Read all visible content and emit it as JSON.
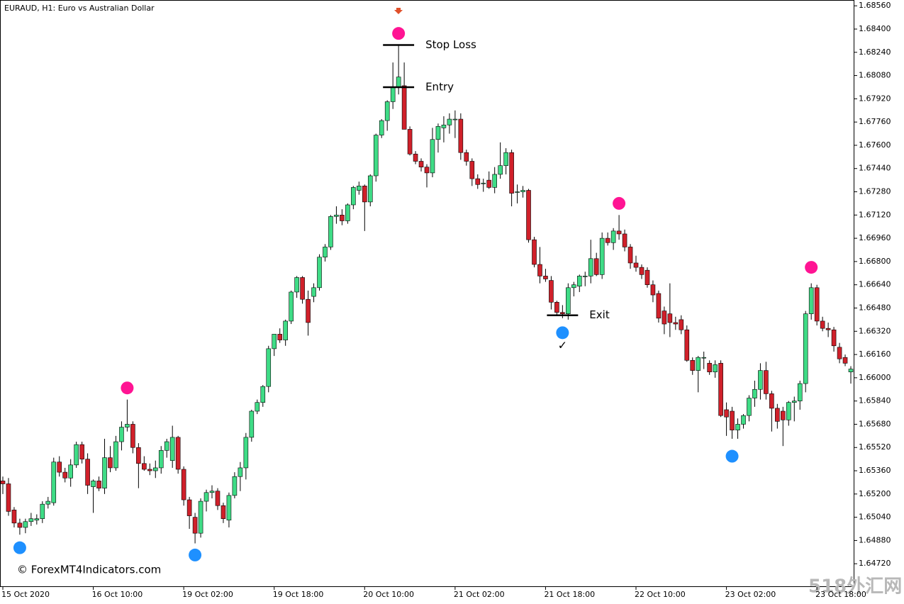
{
  "chart_data": {
    "type": "candlestick",
    "title": "EURAUD, H1:  Euro vs Australian Dollar",
    "categories": [
      "15 Oct 2020",
      null,
      null,
      null,
      null,
      null,
      null,
      null,
      null,
      null,
      null,
      null,
      null,
      null,
      null,
      null,
      "16 Oct 10:00",
      null,
      null,
      null,
      null,
      null,
      null,
      null,
      null,
      null,
      null,
      null,
      null,
      null,
      null,
      null,
      "19 Oct 02:00",
      null,
      null,
      null,
      null,
      null,
      null,
      null,
      null,
      null,
      null,
      null,
      null,
      null,
      null,
      null,
      "19 Oct 18:00",
      null,
      null,
      null,
      null,
      null,
      null,
      null,
      null,
      null,
      null,
      null,
      null,
      null,
      null,
      null,
      "20 Oct 10:00",
      null,
      null,
      null,
      null,
      null,
      null,
      null,
      null,
      null,
      null,
      null,
      null,
      null,
      null,
      null,
      "21 Oct 02:00",
      null,
      null,
      null,
      null,
      null,
      null,
      null,
      null,
      null,
      null,
      null,
      null,
      null,
      null,
      null,
      "21 Oct 18:00",
      null,
      null,
      null,
      null,
      null,
      null,
      null,
      null,
      null,
      null,
      null,
      null,
      null,
      null,
      null,
      "22 Oct 10:00",
      null,
      null,
      null,
      null,
      null,
      null,
      null,
      null,
      null,
      null,
      null,
      null,
      null,
      null,
      null,
      "23 Oct 02:00",
      null,
      null,
      null,
      null,
      null,
      null,
      null,
      null,
      null,
      null,
      null,
      null,
      null,
      null,
      null,
      "23 Oct 18:00",
      null,
      null,
      null,
      null,
      null,
      null
    ],
    "open": [
      1.6529,
      1.6527,
      1.6509,
      1.65,
      1.6497,
      1.6501,
      1.6502,
      1.6503,
      1.6513,
      1.6514,
      1.6542,
      1.6535,
      1.6531,
      1.654,
      1.6554,
      1.6544,
      1.6525,
      1.6529,
      1.6524,
      1.6545,
      1.6538,
      1.6556,
      1.6566,
      1.6568,
      1.6552,
      1.6541,
      1.6537,
      1.6536,
      1.6538,
      1.655,
      1.6543,
      1.6559,
      1.6537,
      1.6516,
      1.6504,
      1.6493,
      1.6515,
      1.6521,
      1.6522,
      1.6512,
      1.6502,
      1.6519,
      1.6532,
      1.6538,
      1.6559,
      1.6577,
      1.6583,
      1.6594,
      1.662,
      1.663,
      1.6626,
      1.6639,
      1.6659,
      1.6669,
      1.6654,
      1.6656,
      1.6662,
      1.6683,
      1.669,
      1.6711,
      1.6712,
      1.6708,
      1.6719,
      1.6729,
      1.6732,
      1.6721,
      1.6739,
      1.6767,
      1.6777,
      1.679,
      1.68,
      1.6801,
      1.6771,
      1.6754,
      1.6749,
      1.6745,
      1.6741,
      1.6764,
      1.6772,
      1.6774,
      1.6778,
      1.6778,
      1.6755,
      1.6749,
      1.6737,
      1.6734,
      1.6736,
      1.6731,
      1.674,
      1.6746,
      1.6755,
      1.6728,
      1.6728,
      1.6729,
      1.6695,
      1.6678,
      1.667,
      1.6667,
      1.6652,
      1.6645,
      1.6644,
      1.6662,
      1.6663,
      1.667,
      1.667,
      1.6682,
      1.6671,
      1.6696,
      1.6693,
      1.6701,
      1.6699,
      1.669,
      1.6679,
      1.6676,
      1.6674,
      1.6664,
      1.6658,
      1.6646,
      1.6644,
      1.6638,
      1.664,
      1.6633,
      1.6612,
      1.6605,
      1.6614,
      1.661,
      1.6604,
      1.661,
      1.6578,
      1.6577,
      1.6564,
      1.6568,
      1.6574,
      1.6586,
      1.6592,
      1.6605,
      1.6589,
      1.6579,
      1.6577,
      1.6571,
      1.6583,
      1.6584,
      1.6596,
      1.6644,
      1.6662,
      1.6639,
      1.6634,
      1.6633,
      1.6621,
      1.6614,
      1.6604
    ],
    "high": [
      1.6532,
      1.6531,
      1.6511,
      1.6503,
      1.6503,
      1.6507,
      1.6506,
      1.6515,
      1.6518,
      1.6545,
      1.6546,
      1.6538,
      1.6544,
      1.6556,
      1.6556,
      1.6548,
      1.653,
      1.6532,
      1.6558,
      1.6553,
      1.656,
      1.657,
      1.6585,
      1.657,
      1.6555,
      1.6546,
      1.6541,
      1.6543,
      1.6553,
      1.6558,
      1.6567,
      1.656,
      1.6539,
      1.6518,
      1.6507,
      1.6517,
      1.6523,
      1.6526,
      1.6524,
      1.6514,
      1.6521,
      1.6535,
      1.6542,
      1.6562,
      1.6578,
      1.6585,
      1.6595,
      1.6622,
      1.663,
      1.6634,
      1.664,
      1.666,
      1.667,
      1.667,
      1.666,
      1.6665,
      1.6685,
      1.6692,
      1.6712,
      1.6718,
      1.6716,
      1.672,
      1.6732,
      1.6735,
      1.6733,
      1.674,
      1.6768,
      1.6778,
      1.6791,
      1.6817,
      1.6829,
      1.6817,
      1.6773,
      1.6756,
      1.6751,
      1.6747,
      1.6772,
      1.6775,
      1.678,
      1.6782,
      1.6784,
      1.6782,
      1.6757,
      1.6751,
      1.674,
      1.6737,
      1.6742,
      1.6745,
      1.6762,
      1.6758,
      1.6757,
      1.6733,
      1.6732,
      1.673,
      1.6697,
      1.669,
      1.6675,
      1.667,
      1.6653,
      1.665,
      1.6665,
      1.6666,
      1.6671,
      1.6673,
      1.6695,
      1.6686,
      1.67,
      1.67,
      1.6703,
      1.6712,
      1.6702,
      1.6692,
      1.6684,
      1.6678,
      1.6676,
      1.6667,
      1.666,
      1.6649,
      1.6665,
      1.6642,
      1.6643,
      1.6636,
      1.6614,
      1.6615,
      1.6618,
      1.6612,
      1.6612,
      1.6612,
      1.6583,
      1.658,
      1.6572,
      1.6575,
      1.6588,
      1.6598,
      1.661,
      1.6611,
      1.6591,
      1.6582,
      1.658,
      1.6584,
      1.6587,
      1.6598,
      1.6646,
      1.6665,
      1.6664,
      1.6642,
      1.6638,
      1.6635,
      1.6624,
      1.6616,
      1.6608
    ],
    "low": [
      1.652,
      1.6505,
      1.6497,
      1.6492,
      1.6493,
      1.6498,
      1.6499,
      1.65,
      1.651,
      1.6512,
      1.6532,
      1.6528,
      1.6525,
      1.6538,
      1.6541,
      1.652,
      1.6507,
      1.6522,
      1.652,
      1.6535,
      1.6536,
      1.655,
      1.6563,
      1.6548,
      1.6524,
      1.6536,
      1.6533,
      1.6531,
      1.6534,
      1.6545,
      1.6538,
      1.6534,
      1.6512,
      1.6496,
      1.6486,
      1.649,
      1.6508,
      1.6517,
      1.6509,
      1.65,
      1.6497,
      1.6517,
      1.6522,
      1.653,
      1.6556,
      1.6575,
      1.658,
      1.659,
      1.6615,
      1.6624,
      1.6622,
      1.6637,
      1.6655,
      1.6651,
      1.6629,
      1.6652,
      1.666,
      1.668,
      1.6688,
      1.6706,
      1.6705,
      1.6706,
      1.6716,
      1.6726,
      1.6701,
      1.6718,
      1.6735,
      1.6765,
      1.677,
      1.6785,
      1.6795,
      1.6771,
      1.6753,
      1.6747,
      1.6742,
      1.6731,
      1.6738,
      1.6755,
      1.6762,
      1.6768,
      1.6765,
      1.675,
      1.6746,
      1.6732,
      1.673,
      1.6728,
      1.673,
      1.6727,
      1.6737,
      1.674,
      1.6718,
      1.672,
      1.6724,
      1.6693,
      1.6676,
      1.6665,
      1.6666,
      1.6647,
      1.6643,
      1.6641,
      1.664,
      1.6656,
      1.6659,
      1.6663,
      1.6665,
      1.667,
      1.6668,
      1.6691,
      1.6688,
      1.6695,
      1.6687,
      1.6675,
      1.6673,
      1.6668,
      1.6662,
      1.6652,
      1.6638,
      1.663,
      1.6628,
      1.6633,
      1.663,
      1.6611,
      1.6602,
      1.659,
      1.6606,
      1.6602,
      1.66,
      1.6573,
      1.656,
      1.6558,
      1.6558,
      1.6565,
      1.657,
      1.658,
      1.6585,
      1.6585,
      1.6563,
      1.6565,
      1.6553,
      1.6567,
      1.657,
      1.6578,
      1.659,
      1.664,
      1.6636,
      1.6632,
      1.6628,
      1.6618,
      1.661,
      1.6608,
      1.6596
    ],
    "close": [
      1.6527,
      1.6508,
      1.65,
      1.6497,
      1.6501,
      1.6503,
      1.6503,
      1.6513,
      1.6515,
      1.6542,
      1.6535,
      1.6531,
      1.654,
      1.6554,
      1.6544,
      1.6526,
      1.6529,
      1.6524,
      1.6545,
      1.6538,
      1.6556,
      1.6566,
      1.6568,
      1.6552,
      1.6541,
      1.6537,
      1.6536,
      1.6538,
      1.655,
      1.6556,
      1.6559,
      1.6537,
      1.6516,
      1.6505,
      1.6493,
      1.6515,
      1.6521,
      1.6522,
      1.6512,
      1.6503,
      1.6519,
      1.6532,
      1.6538,
      1.6559,
      1.6577,
      1.6583,
      1.6594,
      1.662,
      1.663,
      1.6626,
      1.6639,
      1.6659,
      1.6669,
      1.6654,
      1.6638,
      1.6662,
      1.6683,
      1.669,
      1.6711,
      1.6712,
      1.6708,
      1.6719,
      1.6731,
      1.6732,
      1.6721,
      1.6739,
      1.6767,
      1.6777,
      1.679,
      1.68,
      1.6807,
      1.6771,
      1.6754,
      1.6749,
      1.6745,
      1.6741,
      1.6764,
      1.6773,
      1.6774,
      1.6778,
      1.6778,
      1.6755,
      1.6749,
      1.6737,
      1.6733,
      1.6734,
      1.6731,
      1.674,
      1.6746,
      1.6755,
      1.6727,
      1.6728,
      1.6729,
      1.6695,
      1.6678,
      1.667,
      1.6668,
      1.6652,
      1.6645,
      1.6644,
      1.6662,
      1.6664,
      1.667,
      1.667,
      1.6682,
      1.6671,
      1.6696,
      1.6693,
      1.6701,
      1.6699,
      1.669,
      1.6679,
      1.6676,
      1.6671,
      1.6664,
      1.6657,
      1.6641,
      1.6637,
      1.6638,
      1.6637,
      1.6633,
      1.6612,
      1.6605,
      1.6614,
      1.6614,
      1.6604,
      1.6609,
      1.6574,
      1.6573,
      1.6564,
      1.6568,
      1.6574,
      1.6586,
      1.6592,
      1.6605,
      1.6589,
      1.6579,
      1.657,
      1.6571,
      1.6583,
      1.6584,
      1.6596,
      1.6644,
      1.6662,
      1.6639,
      1.6634,
      1.6633,
      1.6622,
      1.6613,
      1.661,
      1.6606
    ],
    "up_color": "#3fdc86",
    "down_color": "#d0202a",
    "ylim": [
      1.6456,
      1.686
    ],
    "yticks": [
      {
        "value": 1.6856,
        "label": "1.68560"
      },
      {
        "value": 1.684,
        "label": "1.68400"
      },
      {
        "value": 1.6824,
        "label": "1.68240"
      },
      {
        "value": 1.6808,
        "label": "1.68080"
      },
      {
        "value": 1.6792,
        "label": "1.67920"
      },
      {
        "value": 1.6776,
        "label": "1.67760"
      },
      {
        "value": 1.676,
        "label": "1.67600"
      },
      {
        "value": 1.6744,
        "label": "1.67440"
      },
      {
        "value": 1.6728,
        "label": "1.67280"
      },
      {
        "value": 1.6712,
        "label": "1.67120"
      },
      {
        "value": 1.6696,
        "label": "1.66960"
      },
      {
        "value": 1.668,
        "label": "1.66800"
      },
      {
        "value": 1.6664,
        "label": "1.66640"
      },
      {
        "value": 1.6648,
        "label": "1.66480"
      },
      {
        "value": 1.6632,
        "label": "1.66320"
      },
      {
        "value": 1.6616,
        "label": "1.66160"
      },
      {
        "value": 1.66,
        "label": "1.66000"
      },
      {
        "value": 1.6584,
        "label": "1.65840"
      },
      {
        "value": 1.6568,
        "label": "1.65680"
      },
      {
        "value": 1.6552,
        "label": "1.65520"
      },
      {
        "value": 1.6536,
        "label": "1.65360"
      },
      {
        "value": 1.652,
        "label": "1.65200"
      },
      {
        "value": 1.6504,
        "label": "1.65040"
      },
      {
        "value": 1.6488,
        "label": "1.64880"
      },
      {
        "value": 1.6472,
        "label": "1.64720"
      }
    ],
    "sell_signals": {
      "color": "#ff1493",
      "x": [
        22,
        70,
        109,
        143
      ],
      "values": [
        1.6593,
        1.6837,
        1.672,
        1.6676
      ]
    },
    "buy_signals": {
      "color": "#1e90ff",
      "x": [
        3,
        34,
        99,
        129
      ],
      "values": [
        1.6483,
        1.6478,
        1.6631,
        1.6546
      ]
    },
    "levels": [
      {
        "label": "Stop Loss",
        "value": 1.6829,
        "bars": [
          68,
          72
        ]
      },
      {
        "label": "Entry",
        "value": 1.68,
        "bars": [
          68,
          72
        ]
      },
      {
        "label": "Exit",
        "value": 1.6643,
        "bars": [
          97,
          101
        ]
      }
    ],
    "annotations": [
      {
        "text": "✓",
        "x": 99,
        "value": 1.6622
      }
    ],
    "copyright": "© ForexMT4Indicators.com",
    "watermark": "518外汇网"
  }
}
